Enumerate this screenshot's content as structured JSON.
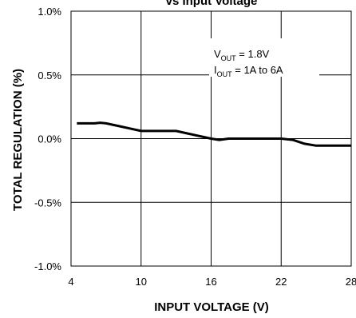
{
  "chart_data": {
    "type": "line",
    "title": "vs Input Voltage",
    "xlabel": "INPUT VOLTAGE (V)",
    "ylabel": "TOTAL REGULATION (%)",
    "xlim": [
      4,
      28
    ],
    "ylim": [
      -1.0,
      1.0
    ],
    "x_ticks": [
      4,
      10,
      16,
      22,
      28
    ],
    "x_tick_labels": [
      "4",
      "10",
      "16",
      "22",
      "28"
    ],
    "y_ticks": [
      -1.0,
      -0.5,
      0.0,
      0.5,
      1.0
    ],
    "y_tick_labels": [
      "-1.0%",
      "-0.5%",
      "0.0%",
      "0.5%",
      "1.0%"
    ],
    "grid": true,
    "series": [
      {
        "x": [
          4.5,
          6.0,
          6.5,
          7.0,
          8.0,
          9.0,
          10.0,
          11.0,
          12.0,
          13.0,
          14.0,
          15.0,
          16.0,
          16.7,
          17.5,
          18.0,
          19.0,
          20.0,
          21.0,
          22.0,
          23.0,
          24.0,
          25.0,
          26.0,
          27.0,
          28.0
        ],
        "y": [
          0.12,
          0.12,
          0.125,
          0.12,
          0.1,
          0.08,
          0.06,
          0.06,
          0.06,
          0.06,
          0.04,
          0.02,
          0.0,
          -0.01,
          0.0,
          0.0,
          0.0,
          0.0,
          0.0,
          0.0,
          -0.01,
          -0.04,
          -0.055,
          -0.055,
          -0.055,
          -0.055
        ]
      }
    ],
    "annotations": [
      {
        "main": "V",
        "sub": "OUT",
        "rest": " = 1.8V"
      },
      {
        "main": "I",
        "sub": "OUT",
        "rest": " = 1A to 6A"
      }
    ]
  }
}
